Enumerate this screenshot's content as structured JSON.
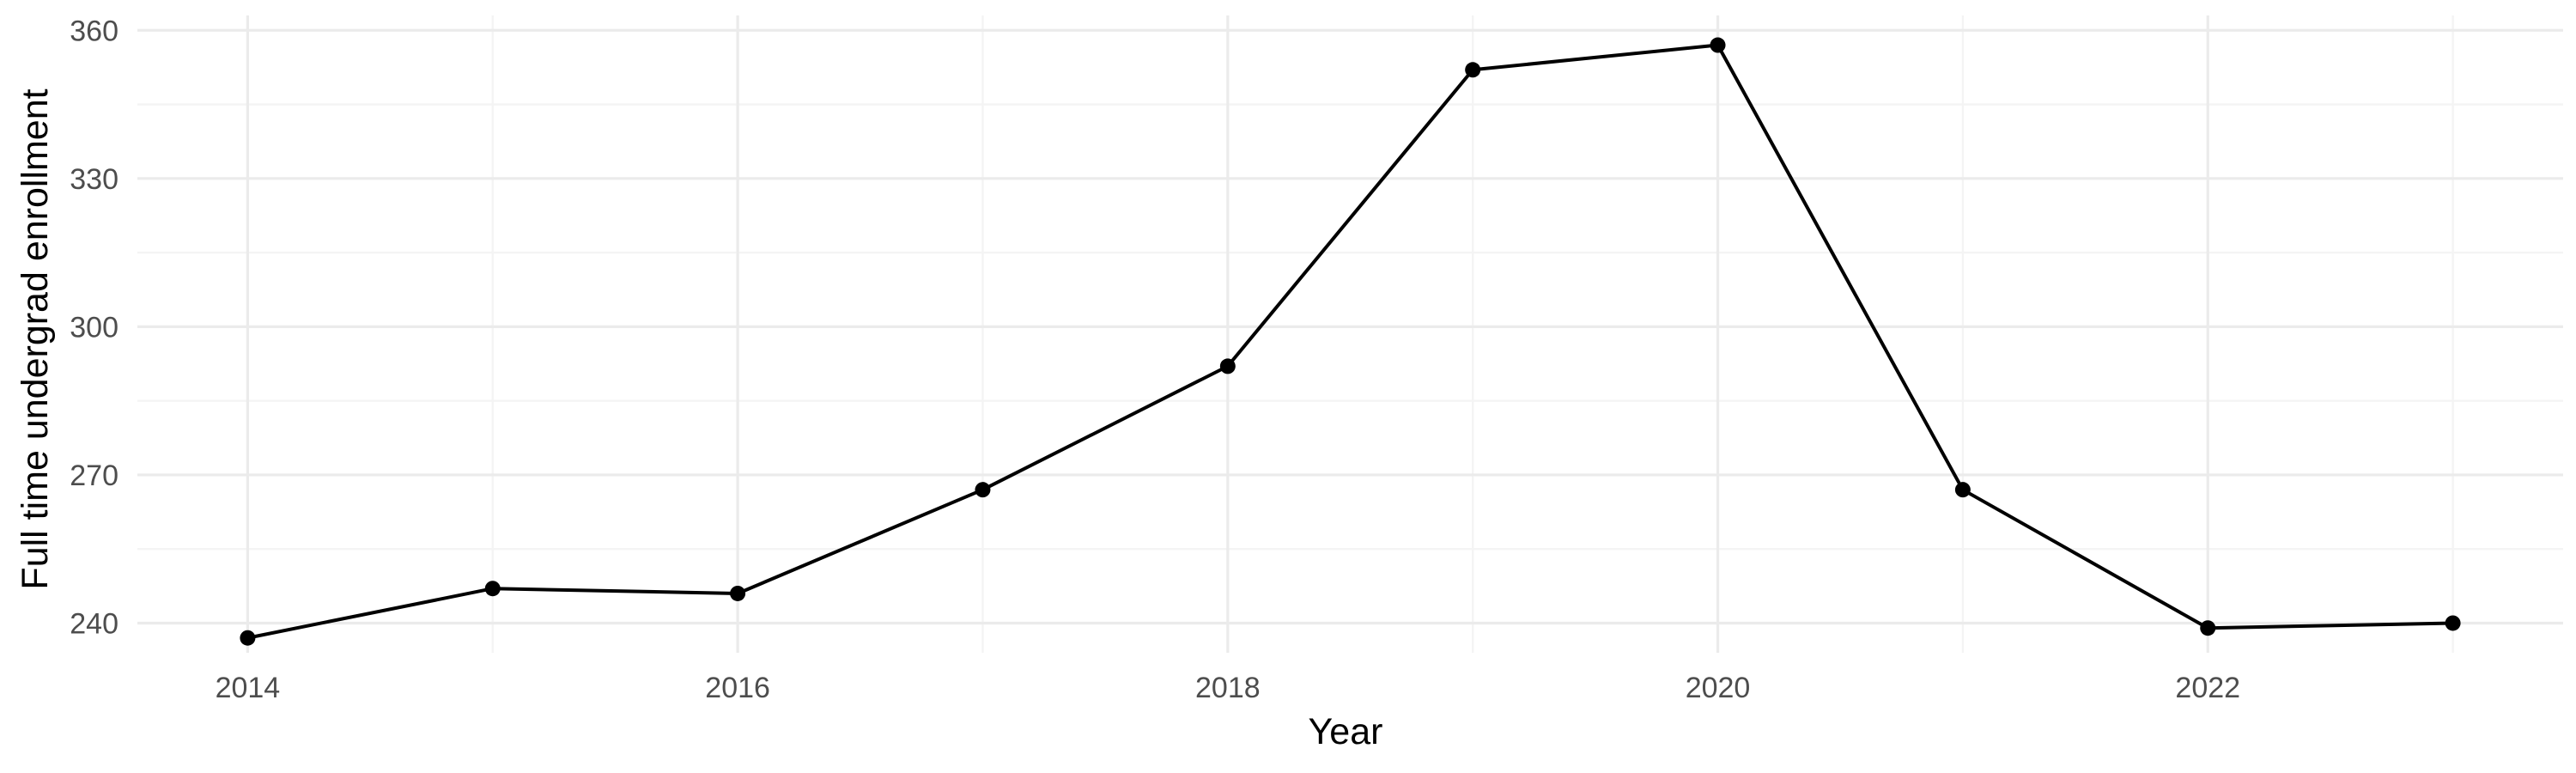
{
  "chart_data": {
    "type": "line",
    "title": "",
    "xlabel": "Year",
    "ylabel": "Full time undergrad enrollment",
    "x": [
      2014,
      2015,
      2016,
      2017,
      2018,
      2019,
      2020,
      2021,
      2022,
      2023
    ],
    "series": [
      {
        "values": [
          237,
          247,
          246,
          267,
          292,
          352,
          357,
          267,
          239,
          240
        ]
      }
    ],
    "xlim": [
      2013.55,
      2023.45
    ],
    "ylim": [
      234,
      363
    ],
    "x_ticks": [
      2014,
      2016,
      2018,
      2020,
      2022
    ],
    "x_tick_labels": [
      "2014",
      "2016",
      "2018",
      "2020",
      "2022"
    ],
    "y_ticks": [
      240,
      270,
      300,
      330,
      360
    ],
    "y_tick_labels": [
      "240",
      "270",
      "300",
      "330",
      "360"
    ],
    "grid": true,
    "legend": "none",
    "colors": {
      "line": "#000000",
      "grid": "#ebebeb",
      "text": "#4d4d4d"
    }
  }
}
